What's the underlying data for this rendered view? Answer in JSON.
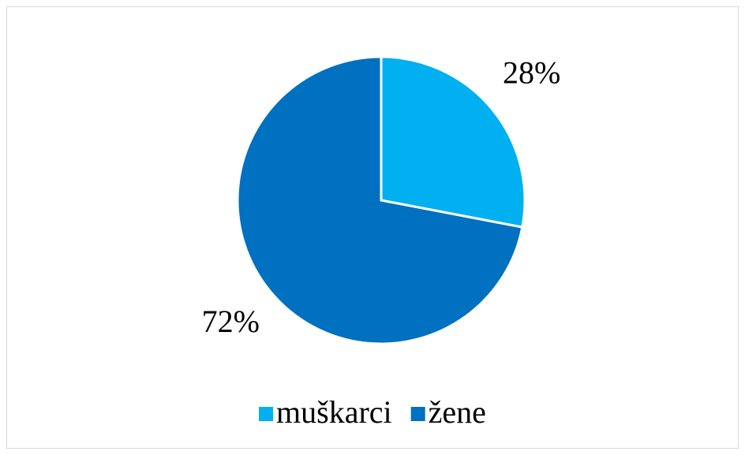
{
  "chart_data": {
    "type": "pie",
    "categories": [
      "muškarci",
      "žene"
    ],
    "values": [
      28,
      72
    ],
    "value_labels": [
      "28%",
      "72%"
    ],
    "colors": [
      "#00b0f0",
      "#0070c0"
    ],
    "legend": "bottom"
  }
}
